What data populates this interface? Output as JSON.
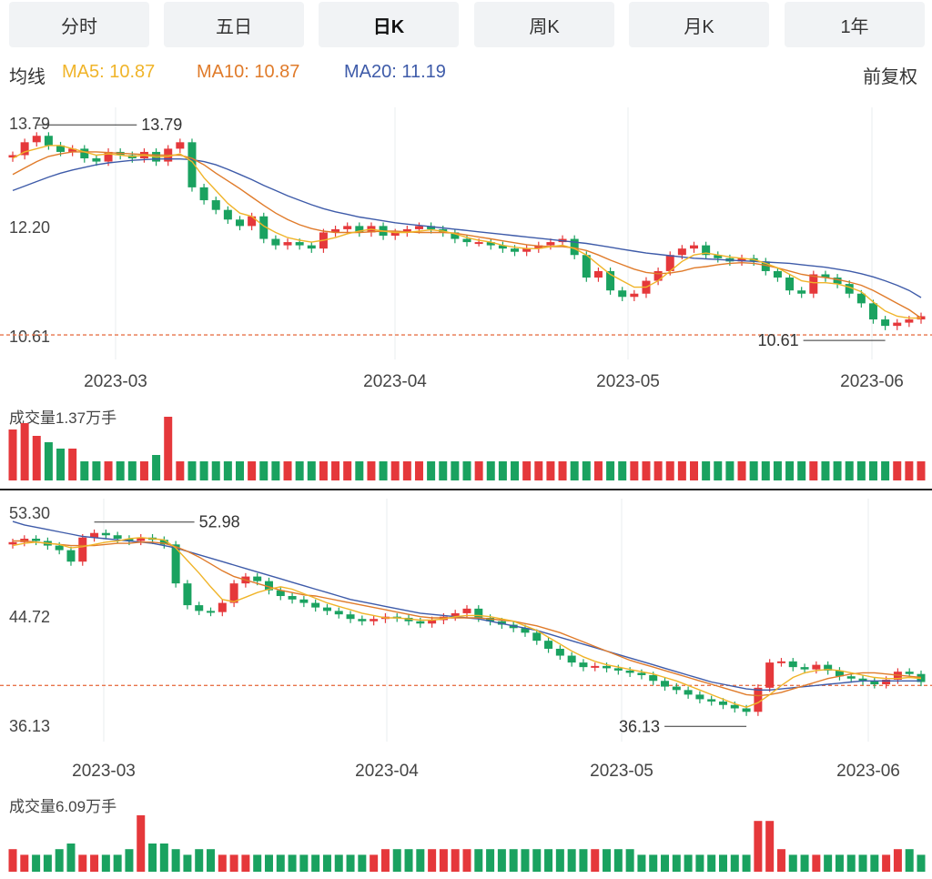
{
  "tabs": [
    "分时",
    "五日",
    "日K",
    "周K",
    "月K",
    "1年"
  ],
  "active_tab": "日K",
  "ma_bar": {
    "title": "均线",
    "ma5": "MA5: 10.87",
    "ma10": "MA10: 10.87",
    "ma20": "MA20: 11.19",
    "adjust": "前复权"
  },
  "colors": {
    "up": "#e5383b",
    "down": "#1aa260",
    "ma5": "#f0b429",
    "ma10": "#e07b2a",
    "ma20": "#3e5ba9",
    "grid": "#e9ecef",
    "ref_line": "#e8744a"
  },
  "chart_data": [
    {
      "type": "candlestick",
      "x_ticks": [
        "2023-03",
        "2023-04",
        "2023-05",
        "2023-06"
      ],
      "y_labels": [
        "13.79",
        "12.20",
        "10.61"
      ],
      "ylim": [
        10.3,
        14.0
      ],
      "high_annotation": "13.79",
      "low_annotation": "10.61",
      "reference_line": 10.61,
      "volume_label": "成交量1.37万手",
      "closes": [
        13.4,
        13.6,
        13.7,
        13.55,
        13.45,
        13.5,
        13.35,
        13.3,
        13.45,
        13.4,
        13.35,
        13.45,
        13.3,
        13.5,
        13.6,
        12.9,
        12.7,
        12.55,
        12.4,
        12.3,
        12.45,
        12.1,
        12.0,
        12.05,
        12.0,
        11.95,
        12.2,
        12.25,
        12.3,
        12.2,
        12.3,
        12.15,
        12.2,
        12.25,
        12.3,
        12.25,
        12.2,
        12.1,
        12.05,
        12.05,
        12.0,
        11.95,
        11.9,
        11.95,
        12.0,
        12.05,
        12.1,
        11.85,
        11.5,
        11.6,
        11.3,
        11.2,
        11.25,
        11.45,
        11.6,
        11.85,
        11.95,
        12.0,
        11.85,
        11.8,
        11.75,
        11.8,
        11.75,
        11.6,
        11.5,
        11.3,
        11.25,
        11.55,
        11.5,
        11.4,
        11.25,
        11.1,
        10.85,
        10.75,
        10.8,
        10.85,
        10.9
      ],
      "ma5": [
        13.35,
        13.45,
        13.5,
        13.55,
        13.55,
        13.5,
        13.45,
        13.4,
        13.42,
        13.4,
        13.38,
        13.4,
        13.37,
        13.38,
        13.42,
        13.3,
        13.05,
        12.85,
        12.65,
        12.5,
        12.45,
        12.3,
        12.2,
        12.12,
        12.08,
        12.05,
        12.08,
        12.12,
        12.18,
        12.22,
        12.25,
        12.22,
        12.2,
        12.2,
        12.22,
        12.24,
        12.22,
        12.18,
        12.12,
        12.08,
        12.05,
        12.0,
        11.97,
        11.95,
        11.95,
        11.98,
        12.0,
        11.95,
        11.85,
        11.7,
        11.55,
        11.45,
        11.35,
        11.35,
        11.45,
        11.6,
        11.75,
        11.85,
        11.88,
        11.85,
        11.82,
        11.8,
        11.78,
        11.72,
        11.65,
        11.55,
        11.45,
        11.42,
        11.42,
        11.4,
        11.35,
        11.28,
        11.12,
        10.98,
        10.9,
        10.87,
        10.87
      ],
      "ma10": [
        13.1,
        13.2,
        13.3,
        13.38,
        13.42,
        13.45,
        13.45,
        13.45,
        13.44,
        13.43,
        13.42,
        13.41,
        13.4,
        13.4,
        13.4,
        13.35,
        13.25,
        13.12,
        13.0,
        12.88,
        12.75,
        12.62,
        12.5,
        12.4,
        12.32,
        12.26,
        12.22,
        12.2,
        12.2,
        12.2,
        12.21,
        12.22,
        12.22,
        12.21,
        12.2,
        12.2,
        12.2,
        12.19,
        12.16,
        12.13,
        12.1,
        12.07,
        12.04,
        12.01,
        11.99,
        11.98,
        11.98,
        11.96,
        11.92,
        11.85,
        11.77,
        11.7,
        11.63,
        11.58,
        11.56,
        11.57,
        11.6,
        11.65,
        11.67,
        11.7,
        11.72,
        11.73,
        11.72,
        11.69,
        11.65,
        11.6,
        11.55,
        11.52,
        11.5,
        11.47,
        11.43,
        11.38,
        11.3,
        11.2,
        11.1,
        11.0,
        10.87
      ],
      "ma20": [
        12.85,
        12.92,
        12.99,
        13.06,
        13.12,
        13.17,
        13.21,
        13.25,
        13.28,
        13.3,
        13.32,
        13.33,
        13.34,
        13.34,
        13.34,
        13.33,
        13.3,
        13.25,
        13.18,
        13.1,
        13.02,
        12.93,
        12.85,
        12.77,
        12.7,
        12.63,
        12.57,
        12.52,
        12.48,
        12.44,
        12.41,
        12.38,
        12.35,
        12.33,
        12.31,
        12.29,
        12.27,
        12.25,
        12.23,
        12.21,
        12.19,
        12.17,
        12.15,
        12.13,
        12.11,
        12.09,
        12.07,
        12.05,
        12.03,
        12.0,
        11.97,
        11.94,
        11.91,
        11.88,
        11.86,
        11.84,
        11.82,
        11.8,
        11.79,
        11.78,
        11.77,
        11.76,
        11.75,
        11.74,
        11.73,
        11.72,
        11.7,
        11.68,
        11.66,
        11.63,
        11.6,
        11.56,
        11.51,
        11.45,
        11.38,
        11.3,
        11.19
      ],
      "volumes": [
        8,
        9,
        7,
        6,
        5,
        5,
        3,
        3,
        3,
        3,
        3,
        3,
        4,
        10,
        3,
        3,
        3,
        3,
        3,
        3,
        3,
        3,
        3,
        3,
        3,
        3,
        3,
        3,
        3,
        3,
        3,
        3,
        3,
        3,
        3,
        3,
        3,
        3,
        3,
        3,
        3,
        3,
        3,
        3,
        3,
        3,
        3,
        3,
        3,
        3,
        3,
        3,
        3,
        3,
        3,
        3,
        3,
        3,
        3,
        3,
        3,
        3,
        3,
        3,
        3,
        3,
        3,
        3,
        3,
        3,
        3,
        3,
        3,
        3,
        3,
        3,
        3
      ]
    },
    {
      "type": "candlestick",
      "x_ticks": [
        "2023-03",
        "2023-04",
        "2023-05",
        "2023-06"
      ],
      "y_labels": [
        "53.30",
        "44.72",
        "36.13"
      ],
      "ylim": [
        34.5,
        54.5
      ],
      "high_annotation": "52.98",
      "low_annotation": "36.13",
      "reference_line": 39.0,
      "volume_label": "成交量6.09万手",
      "closes": [
        51.5,
        51.8,
        51.6,
        51.2,
        50.8,
        49.8,
        51.9,
        52.3,
        52.1,
        51.8,
        51.6,
        51.9,
        51.7,
        51.3,
        47.9,
        46.0,
        45.5,
        45.4,
        46.2,
        47.9,
        48.5,
        48.1,
        47.3,
        46.8,
        46.5,
        46.2,
        45.8,
        45.5,
        45.2,
        44.8,
        44.6,
        44.8,
        45.0,
        44.9,
        44.6,
        44.4,
        44.7,
        45.0,
        45.3,
        45.7,
        44.9,
        44.6,
        44.3,
        44.0,
        43.6,
        42.9,
        42.2,
        41.6,
        41.0,
        40.6,
        40.7,
        40.5,
        40.3,
        40.1,
        39.9,
        39.4,
        38.9,
        38.6,
        38.2,
        37.8,
        37.6,
        37.3,
        37.0,
        36.7,
        38.8,
        41.0,
        41.1,
        40.6,
        40.4,
        40.8,
        40.3,
        39.8,
        39.6,
        39.4,
        39.1,
        39.5,
        40.2,
        40.0,
        39.3
      ],
      "ma5": [
        51.2,
        51.4,
        51.5,
        51.4,
        51.3,
        51.0,
        51.1,
        51.3,
        51.5,
        51.6,
        51.8,
        51.9,
        51.8,
        51.7,
        51.0,
        49.9,
        48.8,
        47.6,
        46.5,
        46.3,
        46.7,
        47.1,
        47.4,
        47.6,
        47.4,
        47.0,
        46.6,
        46.2,
        45.9,
        45.6,
        45.3,
        45.1,
        44.9,
        44.9,
        44.8,
        44.7,
        44.7,
        44.8,
        45.0,
        45.1,
        45.1,
        45.0,
        44.8,
        44.6,
        44.2,
        43.8,
        43.2,
        42.6,
        42.0,
        41.5,
        41.1,
        40.8,
        40.6,
        40.4,
        40.2,
        40.0,
        39.7,
        39.4,
        39.0,
        38.6,
        38.2,
        37.8,
        37.4,
        37.1,
        37.5,
        38.2,
        39.0,
        39.7,
        40.1,
        40.3,
        40.4,
        40.3,
        40.1,
        39.9,
        39.7,
        39.6,
        39.6,
        39.7,
        39.6
      ],
      "ma10": [
        51.6,
        51.6,
        51.5,
        51.4,
        51.3,
        51.2,
        51.2,
        51.2,
        51.3,
        51.4,
        51.4,
        51.5,
        51.5,
        51.4,
        51.1,
        50.7,
        50.2,
        49.6,
        49.0,
        48.5,
        48.2,
        47.9,
        47.6,
        47.3,
        47.1,
        46.9,
        46.8,
        46.6,
        46.4,
        46.2,
        46.0,
        45.8,
        45.6,
        45.4,
        45.2,
        45.0,
        44.9,
        44.9,
        44.9,
        44.9,
        44.9,
        44.8,
        44.7,
        44.6,
        44.4,
        44.2,
        43.9,
        43.6,
        43.2,
        42.8,
        42.4,
        42.0,
        41.6,
        41.2,
        40.9,
        40.6,
        40.3,
        40.0,
        39.7,
        39.4,
        39.1,
        38.8,
        38.5,
        38.2,
        38.1,
        38.2,
        38.4,
        38.7,
        39.0,
        39.3,
        39.6,
        39.8,
        40.0,
        40.1,
        40.1,
        40.0,
        39.9,
        39.8,
        39.7
      ],
      "ma20": [
        53.3,
        53.0,
        52.8,
        52.6,
        52.4,
        52.2,
        52.0,
        51.9,
        51.8,
        51.7,
        51.6,
        51.5,
        51.4,
        51.2,
        51.0,
        50.7,
        50.4,
        50.1,
        49.8,
        49.5,
        49.2,
        48.9,
        48.6,
        48.3,
        48.0,
        47.7,
        47.4,
        47.1,
        46.8,
        46.5,
        46.3,
        46.1,
        45.9,
        45.7,
        45.5,
        45.3,
        45.2,
        45.1,
        45.0,
        44.9,
        44.8,
        44.6,
        44.4,
        44.2,
        44.0,
        43.8,
        43.5,
        43.2,
        42.9,
        42.6,
        42.3,
        42.0,
        41.7,
        41.4,
        41.1,
        40.8,
        40.5,
        40.2,
        39.9,
        39.6,
        39.3,
        39.1,
        38.9,
        38.7,
        38.6,
        38.6,
        38.7,
        38.8,
        38.9,
        39.0,
        39.1,
        39.2,
        39.3,
        39.4,
        39.4,
        39.4,
        39.4,
        39.4,
        39.4
      ],
      "volumes": [
        4,
        3,
        3,
        3,
        4,
        5,
        3,
        3,
        3,
        3,
        4,
        10,
        5,
        5,
        4,
        3,
        4,
        4,
        3,
        3,
        3,
        3,
        3,
        3,
        3,
        3,
        3,
        3,
        3,
        3,
        3,
        3,
        4,
        4,
        4,
        4,
        4,
        4,
        4,
        4,
        4,
        4,
        4,
        4,
        4,
        4,
        4,
        4,
        4,
        4,
        4,
        4,
        4,
        4,
        3,
        3,
        3,
        3,
        3,
        3,
        3,
        3,
        3,
        3,
        9,
        9,
        4,
        3,
        3,
        3,
        3,
        3,
        3,
        3,
        3,
        3,
        4,
        4,
        3
      ]
    }
  ]
}
